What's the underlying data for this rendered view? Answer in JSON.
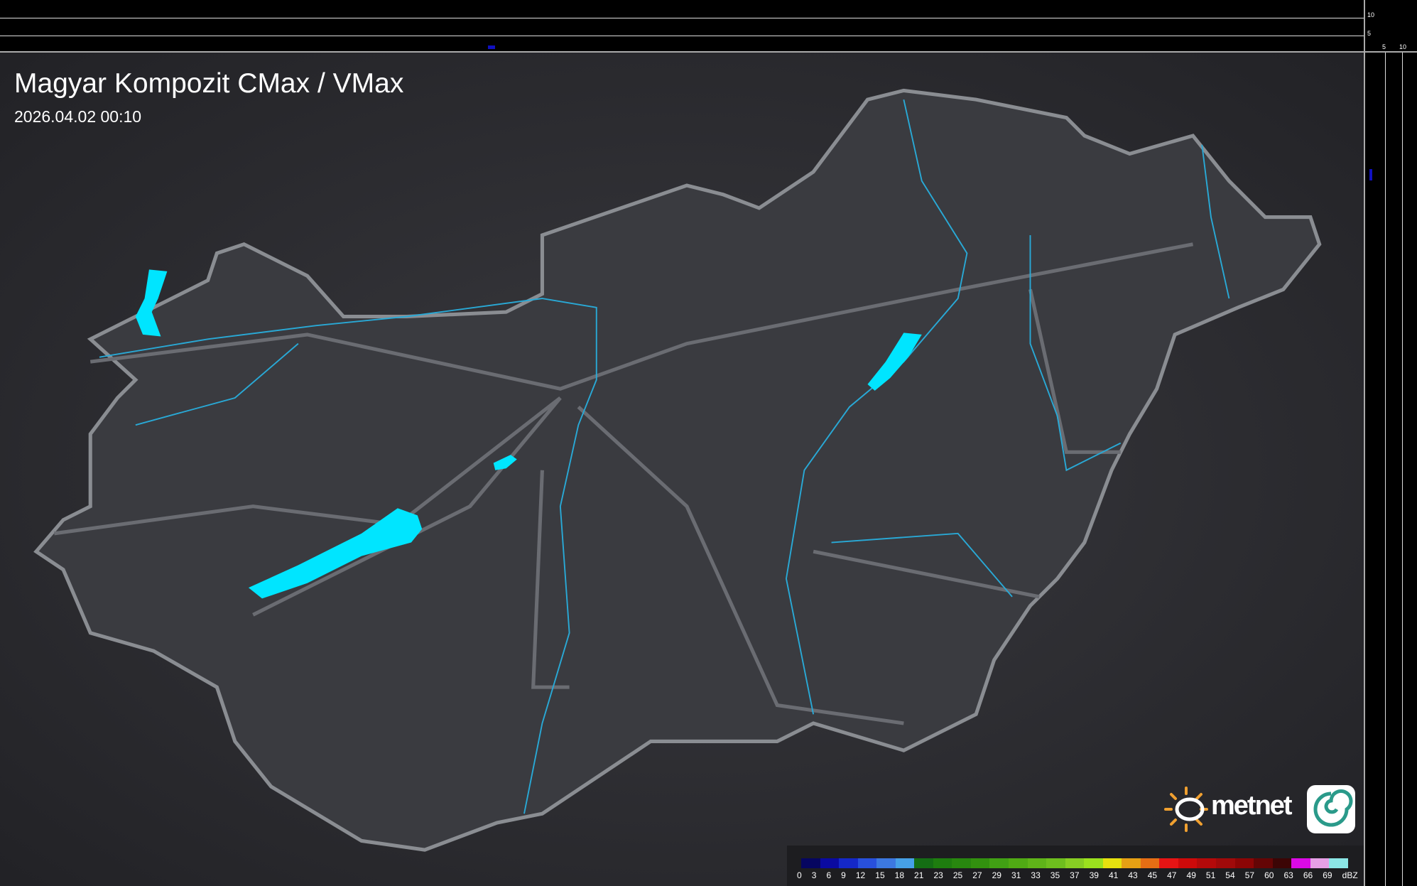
{
  "header": {
    "title": "Magyar Kompozit CMax / VMax",
    "timestamp": "2026.04.02 00:10"
  },
  "side_scale": {
    "vertical_ticks": [
      "10",
      "5"
    ],
    "horizontal_ticks": [
      "5",
      "10"
    ]
  },
  "legend": {
    "labels": [
      "0",
      "3",
      "6",
      "9",
      "12",
      "15",
      "18",
      "21",
      "23",
      "25",
      "27",
      "29",
      "31",
      "33",
      "35",
      "37",
      "39",
      "41",
      "43",
      "45",
      "47",
      "49",
      "51",
      "54",
      "57",
      "60",
      "63",
      "66",
      "69"
    ],
    "unit": "dBZ",
    "colors": [
      "#060660",
      "#0a0aa0",
      "#1428c8",
      "#2850dc",
      "#3c78e0",
      "#46a0e6",
      "#146e14",
      "#1e7d0f",
      "#28870f",
      "#32910f",
      "#41a014",
      "#50aa14",
      "#5fb419",
      "#6ebe1e",
      "#87cd23",
      "#9be11e",
      "#e6e10f",
      "#e6a014",
      "#e66e14",
      "#e61414",
      "#cd0a0a",
      "#b40a0a",
      "#a00a0a",
      "#8c0505",
      "#640505",
      "#3c0505",
      "#dc0ae6",
      "#e6a0e6",
      "#8ce6e6"
    ]
  },
  "brand": {
    "name": "metnet",
    "colors": {
      "sun": "#f0a030",
      "water": "#00e5ff",
      "border": "#8a8d92"
    }
  }
}
